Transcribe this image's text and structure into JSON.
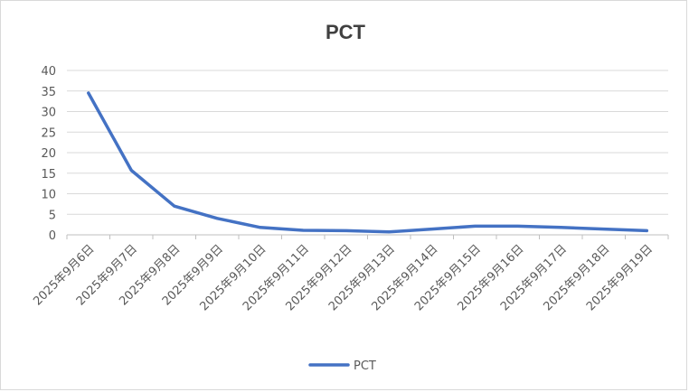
{
  "chart_data": {
    "type": "line",
    "title": "PCT",
    "categories": [
      "2025年9月6日",
      "2025年9月7日",
      "2025年9月8日",
      "2025年9月9日",
      "2025年9月10日",
      "2025年9月11日",
      "2025年9月12日",
      "2025年9月13日",
      "2025年9月14日",
      "2025年9月15日",
      "2025年9月16日",
      "2025年9月17日",
      "2025年9月18日",
      "2025年9月19日"
    ],
    "series": [
      {
        "name": "PCT",
        "values": [
          34.5,
          15.7,
          7.0,
          4.0,
          1.8,
          1.1,
          1.0,
          0.7,
          1.4,
          2.1,
          2.1,
          1.8,
          1.4,
          1.0
        ]
      }
    ],
    "yticks": [
      "0",
      "5",
      "10",
      "15",
      "20",
      "25",
      "30",
      "35",
      "40"
    ],
    "ylim": [
      0,
      40
    ],
    "grid": true,
    "legend": "bottom",
    "colors": {
      "line": "#4472c4",
      "grid": "#d9d9d9",
      "axis": "#bfbfbf",
      "text": "#595959",
      "title": "#404040"
    }
  }
}
